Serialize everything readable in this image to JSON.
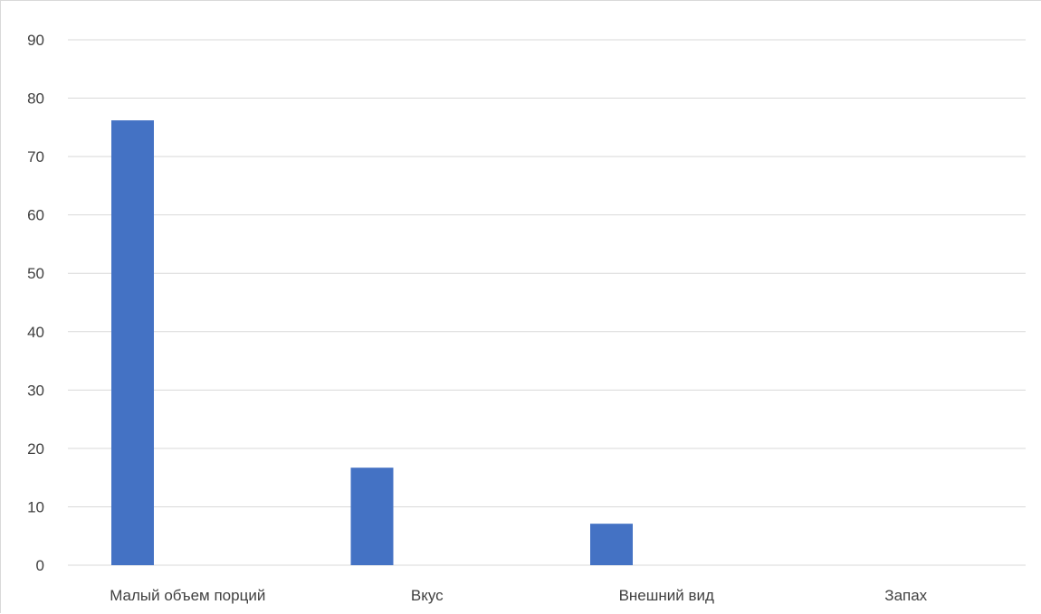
{
  "chart_data": {
    "type": "bar",
    "title": "",
    "xlabel": "",
    "ylabel": "",
    "categories": [
      "Малый объем порций",
      "Вкус",
      "Внешний вид",
      "Запах"
    ],
    "values": [
      76.2,
      16.7,
      7.1,
      0
    ],
    "ylim": [
      0,
      90
    ],
    "yticks": [
      0,
      10,
      20,
      30,
      40,
      50,
      60,
      70,
      80,
      90
    ],
    "grid": true,
    "legend": "none",
    "bar_color": "#4472C4",
    "grid_color": "#d9d9d9"
  }
}
